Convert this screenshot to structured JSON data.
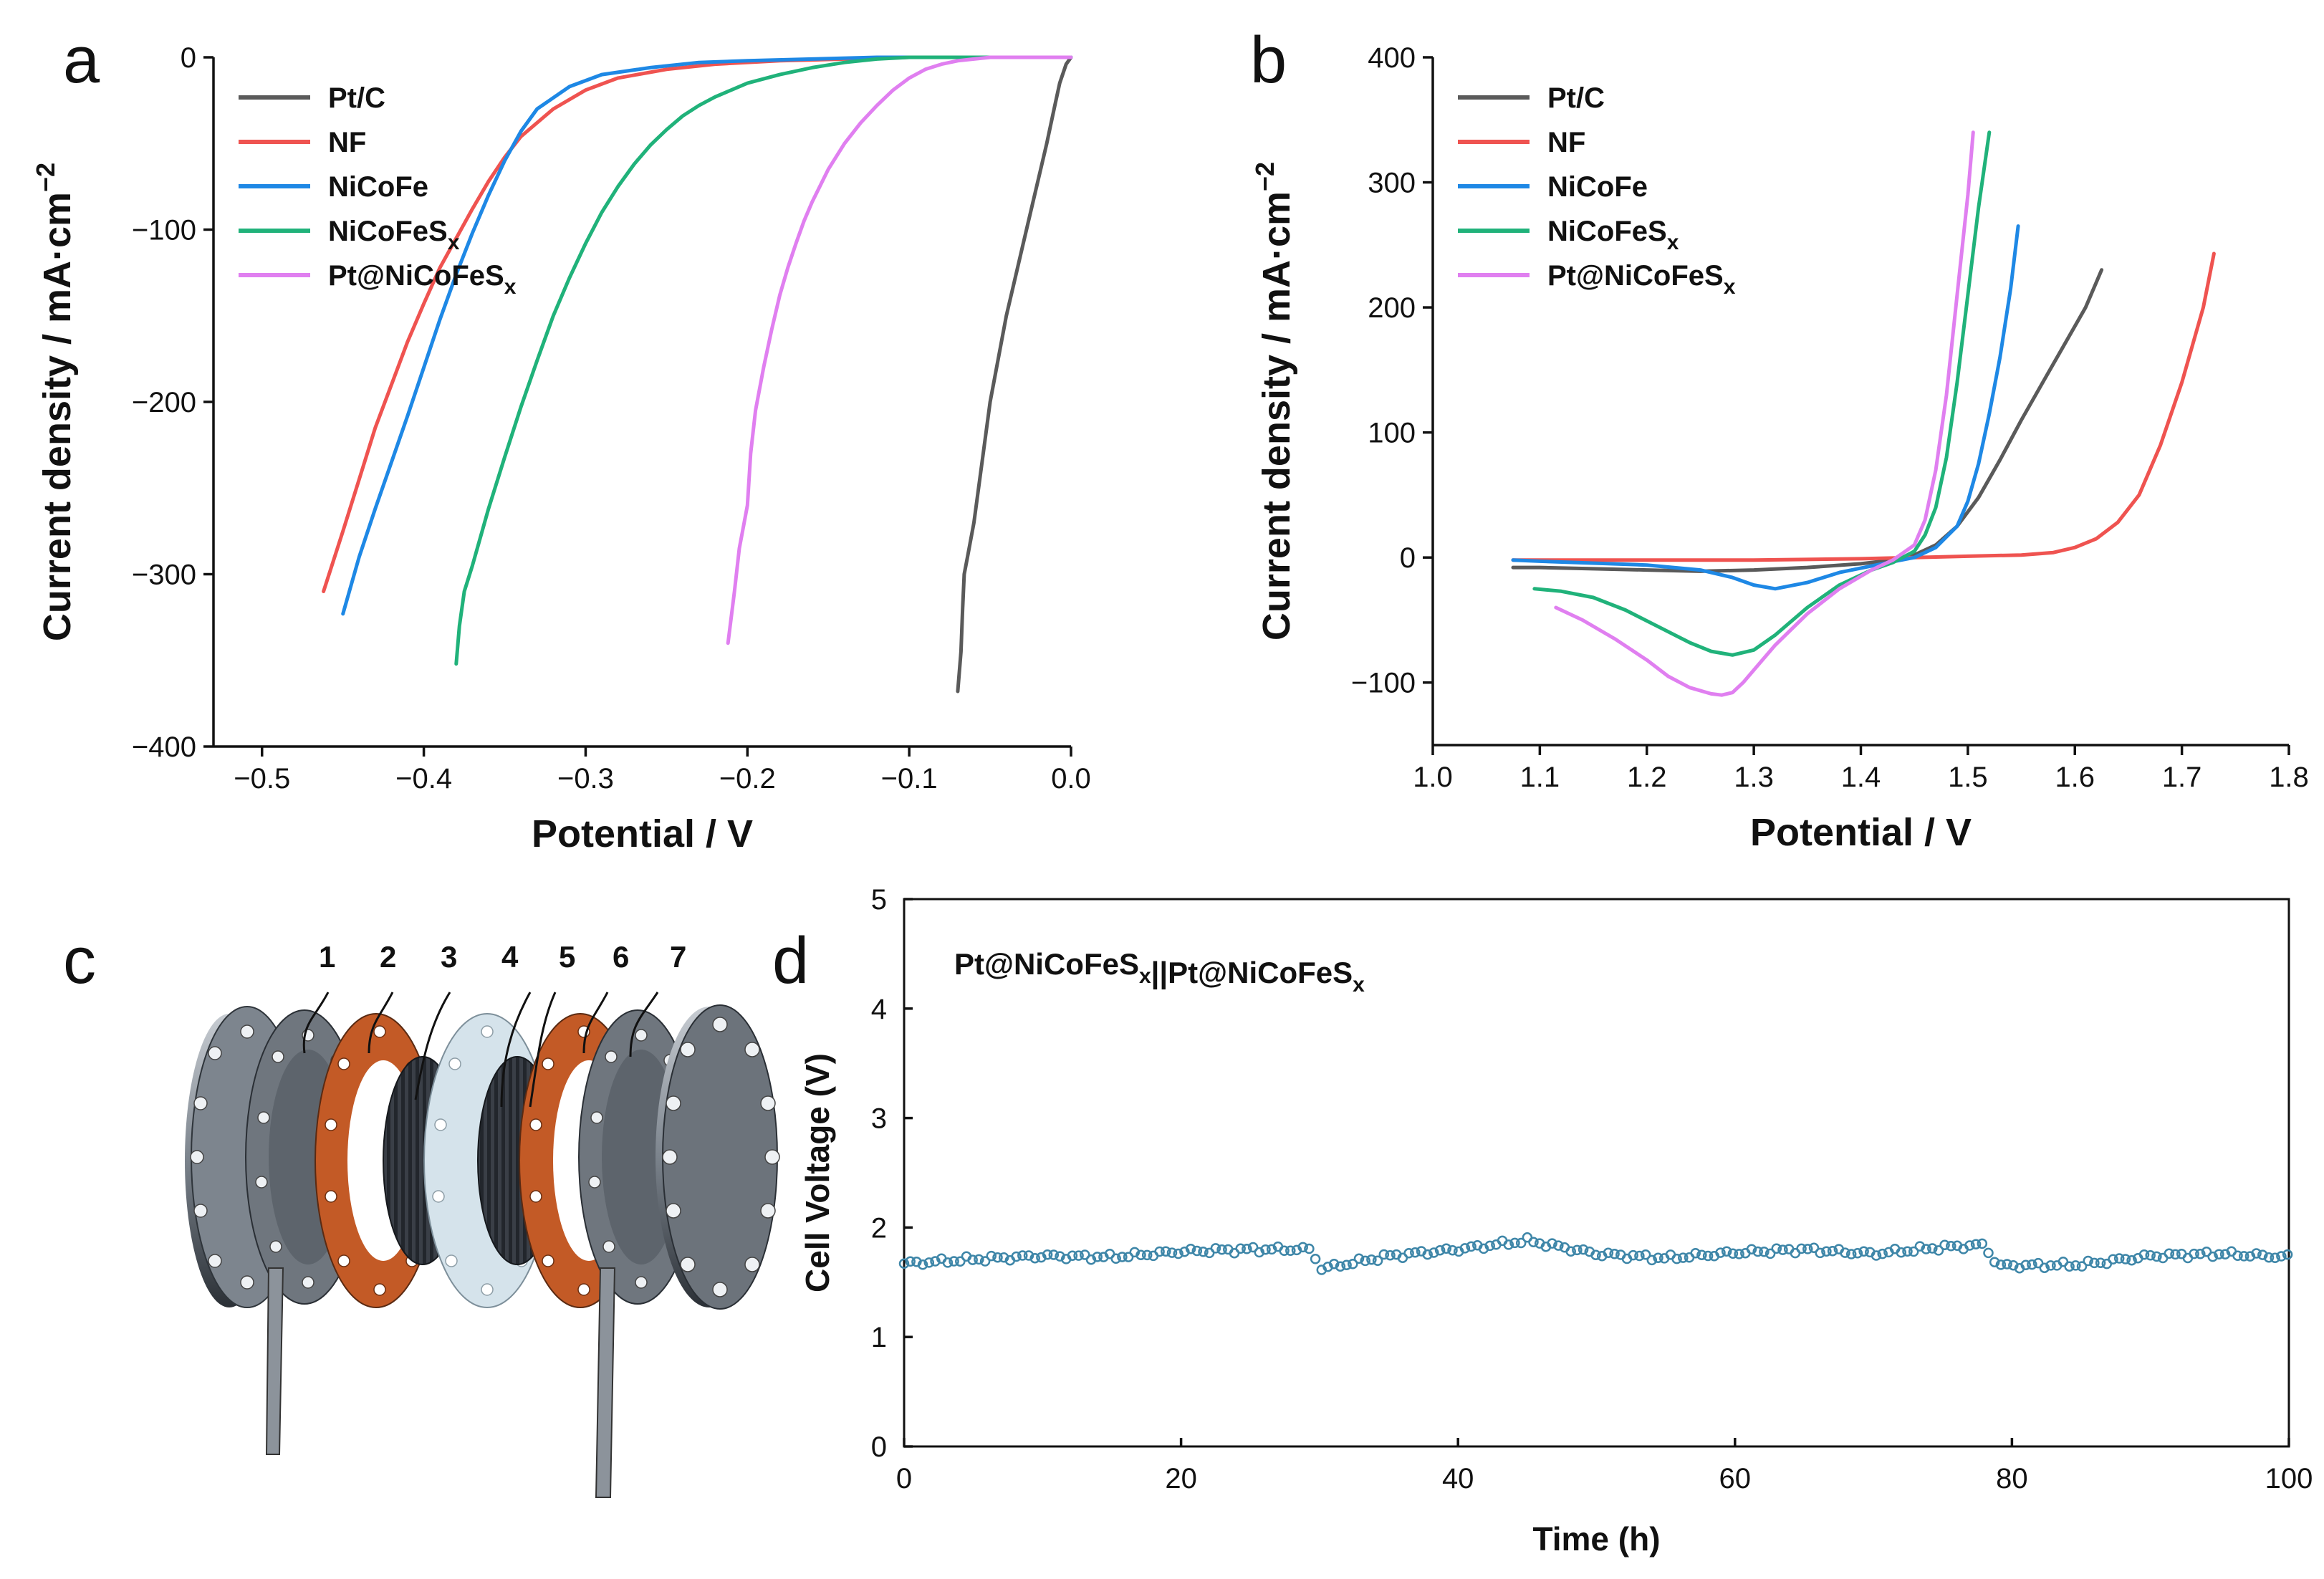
{
  "colors": {
    "Pt/C": "#5a5a5a",
    "NF": "#ef5350",
    "NiCoFe": "#1e88e5",
    "NiCoFeSx": "#20b27a",
    "Pt@NiCoFeSx": "#e07ff0",
    "stability": "#3e86a8"
  },
  "panel_labels": {
    "a": "a",
    "b": "b",
    "c": "c",
    "d": "d"
  },
  "chart_data": [
    {
      "panel": "a",
      "type": "line",
      "xlabel": "Potential / V",
      "ylabel": "Current density / mA·cm",
      "ylabel_sup": "−2",
      "xlim": [
        -0.53,
        0.0
      ],
      "ylim": [
        -400,
        0
      ],
      "xticks": [
        -0.5,
        -0.4,
        -0.3,
        -0.2,
        -0.1,
        0.0
      ],
      "xtick_labels": [
        "−0.5",
        "−0.4",
        "−0.3",
        "−0.2",
        "−0.1",
        "0.0"
      ],
      "yticks": [
        0,
        -100,
        -200,
        -300,
        -400
      ],
      "ytick_labels": [
        "0",
        "−100",
        "−200",
        "−300",
        "−400"
      ],
      "legend_position": "top-left",
      "series": [
        {
          "name": "Pt/C",
          "x": [
            -0.07,
            -0.068,
            -0.067,
            -0.066,
            -0.064,
            -0.06,
            -0.055,
            -0.05,
            -0.045,
            -0.04,
            -0.035,
            -0.03,
            -0.025,
            -0.02,
            -0.015,
            -0.01,
            -0.007,
            -0.003,
            0.0
          ],
          "y": [
            -368,
            -345,
            -320,
            -300,
            -290,
            -270,
            -235,
            -200,
            -175,
            -150,
            -130,
            -110,
            -90,
            -70,
            -50,
            -28,
            -15,
            -4,
            0
          ]
        },
        {
          "name": "NF",
          "x": [
            -0.462,
            -0.45,
            -0.44,
            -0.43,
            -0.42,
            -0.41,
            -0.4,
            -0.39,
            -0.38,
            -0.37,
            -0.36,
            -0.35,
            -0.34,
            -0.32,
            -0.3,
            -0.28,
            -0.25,
            -0.22,
            -0.18,
            -0.14,
            -0.1,
            -0.06,
            -0.02,
            0.0
          ],
          "y": [
            -310,
            -275,
            -245,
            -215,
            -190,
            -165,
            -143,
            -122,
            -105,
            -88,
            -72,
            -58,
            -46,
            -30,
            -19,
            -12,
            -7,
            -4,
            -2,
            -1,
            0,
            0,
            0,
            0
          ]
        },
        {
          "name": "NiCoFe",
          "x": [
            -0.45,
            -0.44,
            -0.43,
            -0.42,
            -0.41,
            -0.4,
            -0.39,
            -0.38,
            -0.37,
            -0.36,
            -0.35,
            -0.34,
            -0.33,
            -0.31,
            -0.29,
            -0.26,
            -0.23,
            -0.2,
            -0.16,
            -0.12,
            -0.08,
            -0.04,
            0.0
          ],
          "y": [
            -323,
            -290,
            -262,
            -235,
            -208,
            -180,
            -152,
            -126,
            -102,
            -80,
            -60,
            -43,
            -30,
            -17,
            -10,
            -6,
            -3,
            -2,
            -1,
            0,
            0,
            0,
            0
          ]
        },
        {
          "name": "NiCoFeSx",
          "x": [
            -0.38,
            -0.378,
            -0.375,
            -0.37,
            -0.36,
            -0.35,
            -0.34,
            -0.33,
            -0.32,
            -0.31,
            -0.3,
            -0.29,
            -0.28,
            -0.27,
            -0.26,
            -0.25,
            -0.24,
            -0.23,
            -0.22,
            -0.2,
            -0.18,
            -0.16,
            -0.14,
            -0.12,
            -0.1,
            -0.08,
            -0.06,
            -0.04,
            -0.02,
            0.0
          ],
          "y": [
            -352,
            -330,
            -310,
            -295,
            -262,
            -232,
            -203,
            -176,
            -150,
            -128,
            -108,
            -90,
            -75,
            -62,
            -51,
            -42,
            -34,
            -28,
            -23,
            -15,
            -10,
            -6,
            -3,
            -1,
            0,
            0,
            0,
            0,
            0,
            0
          ]
        },
        {
          "name": "Pt@NiCoFeSx",
          "x": [
            -0.212,
            -0.208,
            -0.205,
            -0.202,
            -0.2,
            -0.198,
            -0.195,
            -0.19,
            -0.185,
            -0.18,
            -0.175,
            -0.17,
            -0.165,
            -0.16,
            -0.15,
            -0.14,
            -0.13,
            -0.12,
            -0.11,
            -0.1,
            -0.09,
            -0.08,
            -0.07,
            -0.06,
            -0.05,
            -0.04,
            -0.02,
            0.0
          ],
          "y": [
            -340,
            -310,
            -285,
            -270,
            -260,
            -230,
            -205,
            -180,
            -158,
            -138,
            -122,
            -108,
            -95,
            -84,
            -65,
            -50,
            -38,
            -28,
            -19,
            -12,
            -7,
            -4,
            -2,
            -1,
            0,
            0,
            0,
            0
          ]
        }
      ]
    },
    {
      "panel": "b",
      "type": "line",
      "xlabel": "Potential / V",
      "ylabel": "Current density / mA·cm",
      "ylabel_sup": "−2",
      "xlim": [
        1.0,
        1.8
      ],
      "ylim": [
        -150,
        400
      ],
      "xticks": [
        1.0,
        1.1,
        1.2,
        1.3,
        1.4,
        1.5,
        1.6,
        1.7,
        1.8
      ],
      "xtick_labels": [
        "1.0",
        "1.1",
        "1.2",
        "1.3",
        "1.4",
        "1.5",
        "1.6",
        "1.7",
        "1.8"
      ],
      "yticks": [
        -100,
        0,
        100,
        200,
        300,
        400
      ],
      "ytick_labels": [
        "−100",
        "0",
        "100",
        "200",
        "300",
        "400"
      ],
      "legend_position": "top-left",
      "series": [
        {
          "name": "Pt/C",
          "x": [
            1.075,
            1.1,
            1.15,
            1.2,
            1.25,
            1.3,
            1.35,
            1.4,
            1.43,
            1.45,
            1.47,
            1.49,
            1.51,
            1.53,
            1.55,
            1.57,
            1.59,
            1.61,
            1.625
          ],
          "y": [
            -8,
            -8,
            -9,
            -10,
            -11,
            -10,
            -8,
            -5,
            -2,
            2,
            10,
            25,
            48,
            78,
            110,
            140,
            170,
            200,
            230
          ]
        },
        {
          "name": "NF",
          "x": [
            1.075,
            1.1,
            1.2,
            1.3,
            1.4,
            1.45,
            1.5,
            1.55,
            1.58,
            1.6,
            1.62,
            1.64,
            1.66,
            1.68,
            1.7,
            1.72,
            1.73
          ],
          "y": [
            -2,
            -2,
            -2,
            -2,
            -1,
            0,
            1,
            2,
            4,
            8,
            15,
            28,
            50,
            90,
            140,
            200,
            243
          ]
        },
        {
          "name": "NiCoFe",
          "x": [
            1.075,
            1.1,
            1.2,
            1.25,
            1.28,
            1.3,
            1.32,
            1.35,
            1.38,
            1.42,
            1.45,
            1.47,
            1.49,
            1.5,
            1.51,
            1.52,
            1.53,
            1.54,
            1.547
          ],
          "y": [
            -2,
            -3,
            -6,
            -10,
            -16,
            -22,
            -25,
            -20,
            -12,
            -5,
            0,
            8,
            25,
            45,
            75,
            115,
            160,
            215,
            265
          ]
        },
        {
          "name": "NiCoFeSx",
          "x": [
            1.095,
            1.12,
            1.15,
            1.18,
            1.21,
            1.24,
            1.26,
            1.28,
            1.3,
            1.32,
            1.35,
            1.38,
            1.41,
            1.43,
            1.45,
            1.46,
            1.47,
            1.48,
            1.49,
            1.5,
            1.51,
            1.52
          ],
          "y": [
            -25,
            -27,
            -32,
            -42,
            -55,
            -68,
            -75,
            -78,
            -74,
            -62,
            -40,
            -22,
            -10,
            -4,
            5,
            18,
            40,
            80,
            140,
            210,
            280,
            340
          ]
        },
        {
          "name": "Pt@NiCoFeSx",
          "x": [
            1.115,
            1.14,
            1.17,
            1.2,
            1.22,
            1.24,
            1.26,
            1.27,
            1.28,
            1.29,
            1.3,
            1.32,
            1.35,
            1.38,
            1.41,
            1.43,
            1.45,
            1.46,
            1.47,
            1.48,
            1.49,
            1.5,
            1.505
          ],
          "y": [
            -40,
            -50,
            -65,
            -82,
            -95,
            -104,
            -109,
            -110,
            -108,
            -100,
            -90,
            -70,
            -45,
            -25,
            -10,
            -2,
            10,
            30,
            70,
            130,
            210,
            290,
            340
          ]
        }
      ]
    },
    {
      "panel": "d",
      "type": "scatter",
      "xlabel": "Time (h)",
      "ylabel": "Cell Voltage (V)",
      "xlim": [
        0,
        100
      ],
      "ylim": [
        0,
        5
      ],
      "xticks": [
        0,
        20,
        40,
        60,
        80,
        100
      ],
      "xtick_labels": [
        "0",
        "20",
        "40",
        "60",
        "80",
        "100"
      ],
      "yticks": [
        0,
        1,
        2,
        3,
        4,
        5
      ],
      "ytick_labels": [
        "0",
        "1",
        "2",
        "3",
        "4",
        "5"
      ],
      "annotation": {
        "part1": "Pt@NiCoFeS",
        "sub1": "x",
        "sep": "||",
        "part2": "Pt@NiCoFeS",
        "sub2": "x"
      },
      "series": [
        {
          "name": "",
          "x": [
            0,
            5,
            10,
            15,
            20,
            25,
            29.5,
            30,
            35,
            40,
            45,
            50,
            55,
            60,
            65,
            70,
            75,
            78,
            79,
            85,
            90,
            95,
            100
          ],
          "y": [
            1.67,
            1.71,
            1.74,
            1.73,
            1.78,
            1.8,
            1.8,
            1.62,
            1.74,
            1.8,
            1.88,
            1.76,
            1.72,
            1.77,
            1.8,
            1.76,
            1.82,
            1.84,
            1.65,
            1.66,
            1.74,
            1.76,
            1.73
          ]
        }
      ]
    }
  ],
  "diagram_c": {
    "labels": [
      "1",
      "2",
      "3",
      "4",
      "5",
      "6",
      "7"
    ]
  }
}
